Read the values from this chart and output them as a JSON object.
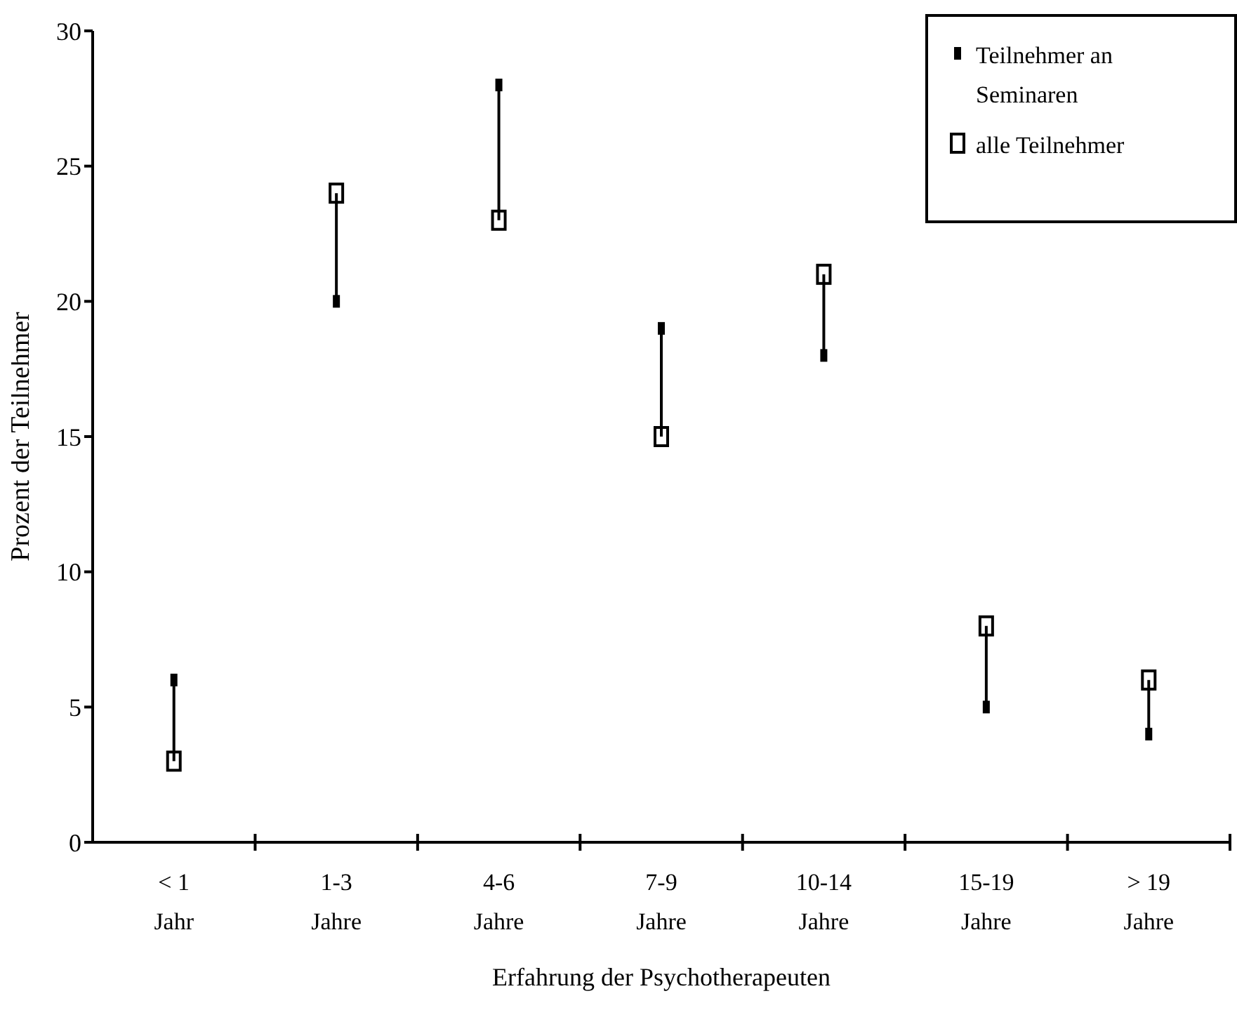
{
  "chart_data": {
    "type": "scatter",
    "xlabel": "Erfahrung der Psychotherapeuten",
    "ylabel": "Prozent der Teilnehmer",
    "categories": [
      "< 1 Jahr",
      "1-3 Jahre",
      "4-6 Jahre",
      "7-9 Jahre",
      "10-14 Jahre",
      "15-19 Jahre",
      "> 19 Jahre"
    ],
    "series": [
      {
        "name": "Teilnehmer an Seminaren",
        "color": "#000000",
        "values": [
          6,
          20,
          28,
          19,
          18,
          5,
          4
        ]
      },
      {
        "name": "alle Teilnehmer",
        "color": "#000000",
        "values": [
          3,
          24,
          23,
          15,
          21,
          8,
          6
        ]
      }
    ],
    "ylim": [
      0,
      30
    ],
    "yticks": [
      0,
      5,
      10,
      15,
      20,
      25,
      30
    ],
    "legend": "top right",
    "marker": "square"
  }
}
